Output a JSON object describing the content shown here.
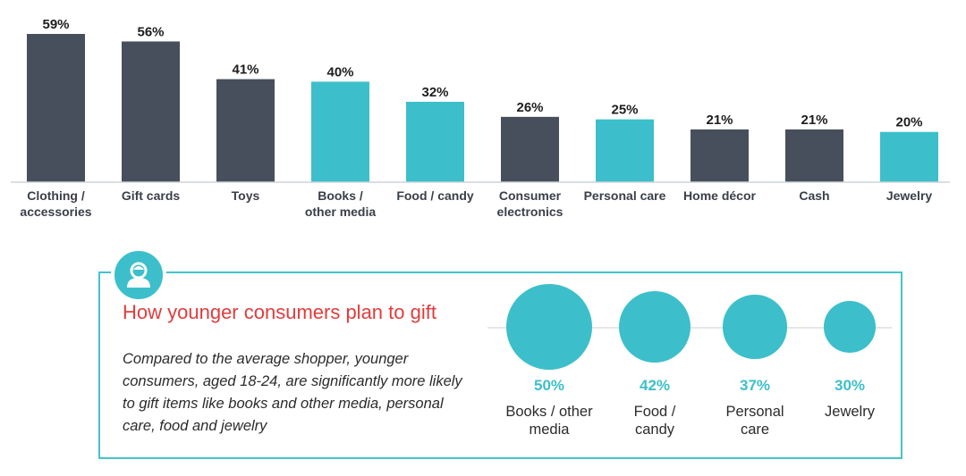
{
  "chart_data": [
    {
      "type": "bar",
      "categories": [
        "Clothing / accessories",
        "Gift cards",
        "Toys",
        "Books / other media",
        "Food / candy",
        "Consumer electronics",
        "Personal care",
        "Home décor",
        "Cash",
        "Jewelry"
      ],
      "category_label_lines": [
        [
          "Clothing /",
          "accessories"
        ],
        [
          "Gift cards"
        ],
        [
          "Toys"
        ],
        [
          "Books /",
          "other media"
        ],
        [
          "Food / candy"
        ],
        [
          "Consumer",
          "electronics"
        ],
        [
          "Personal care"
        ],
        [
          "Home décor"
        ],
        [
          "Cash"
        ],
        [
          "Jewelry"
        ]
      ],
      "values": [
        59,
        56,
        41,
        40,
        32,
        26,
        25,
        21,
        21,
        20
      ],
      "value_labels": [
        "59%",
        "56%",
        "41%",
        "40%",
        "32%",
        "26%",
        "25%",
        "21%",
        "21%",
        "20%"
      ],
      "highlighted": [
        false,
        false,
        false,
        true,
        true,
        false,
        true,
        false,
        false,
        true
      ],
      "ylim": [
        0,
        59
      ],
      "grid": false,
      "title": "",
      "xlabel": "",
      "ylabel": ""
    },
    {
      "type": "bubble",
      "categories": [
        "Books / other media",
        "Food / candy",
        "Personal care",
        "Jewelry"
      ],
      "values": [
        50,
        42,
        37,
        30
      ],
      "value_labels": [
        "50%",
        "42%",
        "37%",
        "30%"
      ],
      "title": "How younger consumers plan to gift"
    }
  ],
  "colors": {
    "bar_default": "#474f5c",
    "bar_highlight": "#3cbfca",
    "accent_teal": "#3cbfca",
    "title_red": "#e23b3b",
    "panel_border": "#46c3cc"
  },
  "panel": {
    "icon": "person-icon",
    "title": "How younger consumers plan to gift",
    "description": "Compared to the average shopper, younger consumers, aged 18-24, are significantly more likely to gift items like books and other media, personal care, food and jewelry",
    "items": [
      {
        "percent": "50%",
        "label": "Books / other\nmedia"
      },
      {
        "percent": "42%",
        "label": "Food /\ncandy"
      },
      {
        "percent": "37%",
        "label": "Personal\ncare"
      },
      {
        "percent": "30%",
        "label": "Jewelry"
      }
    ]
  }
}
